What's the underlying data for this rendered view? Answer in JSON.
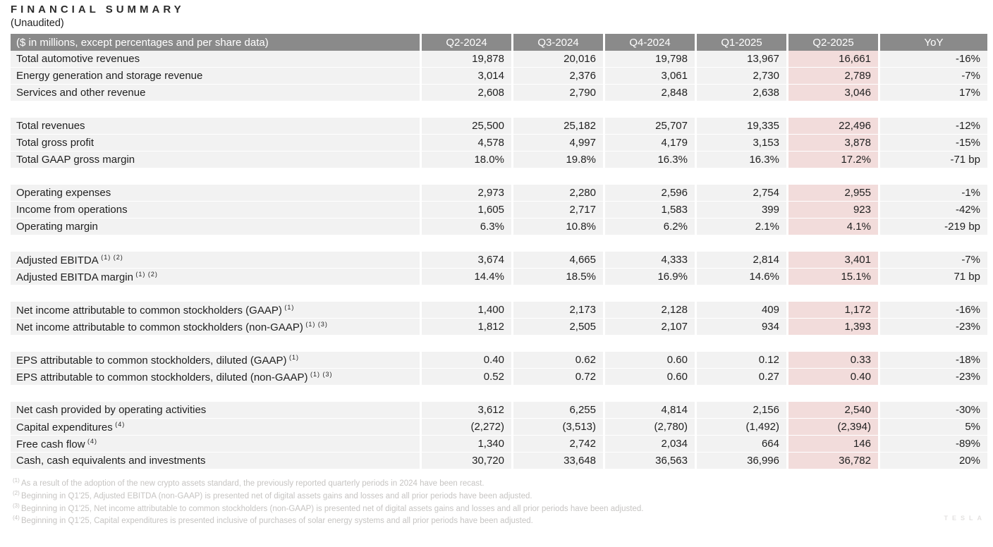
{
  "title": "FINANCIAL SUMMARY",
  "subtitle": "(Unaudited)",
  "colors": {
    "header_bg": "#8a8a8a",
    "row_bg": "#f2f2f2",
    "highlight_column_bg": "#f2dcdb",
    "footnote_text": "#c6c4c2",
    "watermark_text": "#e4e2e1"
  },
  "table": {
    "header_label": "($ in millions, except percentages and per share data)",
    "columns": [
      "Q2-2024",
      "Q3-2024",
      "Q4-2024",
      "Q1-2025",
      "Q2-2025",
      "YoY"
    ],
    "highlight_column": "Q2-2025",
    "groups": [
      {
        "rows": [
          {
            "label": "Total automotive revenues",
            "sup": "",
            "values": [
              "19,878",
              "20,016",
              "19,798",
              "13,967",
              "16,661",
              "-16%"
            ]
          },
          {
            "label": "Energy generation and storage revenue",
            "sup": "",
            "values": [
              "3,014",
              "2,376",
              "3,061",
              "2,730",
              "2,789",
              "-7%"
            ]
          },
          {
            "label": "Services and other revenue",
            "sup": "",
            "values": [
              "2,608",
              "2,790",
              "2,848",
              "2,638",
              "3,046",
              "17%"
            ]
          }
        ]
      },
      {
        "rows": [
          {
            "label": "Total revenues",
            "sup": "",
            "values": [
              "25,500",
              "25,182",
              "25,707",
              "19,335",
              "22,496",
              "-12%"
            ]
          },
          {
            "label": "Total gross profit",
            "sup": "",
            "values": [
              "4,578",
              "4,997",
              "4,179",
              "3,153",
              "3,878",
              "-15%"
            ]
          },
          {
            "label": "Total GAAP gross margin",
            "sup": "",
            "values": [
              "18.0%",
              "19.8%",
              "16.3%",
              "16.3%",
              "17.2%",
              "-71 bp"
            ]
          }
        ]
      },
      {
        "rows": [
          {
            "label": "Operating expenses",
            "sup": "",
            "values": [
              "2,973",
              "2,280",
              "2,596",
              "2,754",
              "2,955",
              "-1%"
            ]
          },
          {
            "label": "Income from operations",
            "sup": "",
            "values": [
              "1,605",
              "2,717",
              "1,583",
              "399",
              "923",
              "-42%"
            ]
          },
          {
            "label": "Operating margin",
            "sup": "",
            "values": [
              "6.3%",
              "10.8%",
              "6.2%",
              "2.1%",
              "4.1%",
              "-219 bp"
            ]
          }
        ]
      },
      {
        "rows": [
          {
            "label": "Adjusted EBITDA",
            "sup": "(1) (2)",
            "values": [
              "3,674",
              "4,665",
              "4,333",
              "2,814",
              "3,401",
              "-7%"
            ]
          },
          {
            "label": "Adjusted EBITDA margin",
            "sup": "(1) (2)",
            "values": [
              "14.4%",
              "18.5%",
              "16.9%",
              "14.6%",
              "15.1%",
              "71 bp"
            ]
          }
        ]
      },
      {
        "rows": [
          {
            "label": "Net income attributable to common stockholders (GAAP)",
            "sup": "(1)",
            "values": [
              "1,400",
              "2,173",
              "2,128",
              "409",
              "1,172",
              "-16%"
            ]
          },
          {
            "label": "Net income attributable to common stockholders (non-GAAP)",
            "sup": "(1) (3)",
            "values": [
              "1,812",
              "2,505",
              "2,107",
              "934",
              "1,393",
              "-23%"
            ]
          }
        ]
      },
      {
        "rows": [
          {
            "label": "EPS attributable to common stockholders, diluted (GAAP)",
            "sup": "(1)",
            "values": [
              "0.40",
              "0.62",
              "0.60",
              "0.12",
              "0.33",
              "-18%"
            ]
          },
          {
            "label": "EPS attributable to common stockholders, diluted (non-GAAP)",
            "sup": "(1) (3)",
            "values": [
              "0.52",
              "0.72",
              "0.60",
              "0.27",
              "0.40",
              "-23%"
            ]
          }
        ]
      },
      {
        "rows": [
          {
            "label": "Net cash provided by operating activities",
            "sup": "",
            "values": [
              "3,612",
              "6,255",
              "4,814",
              "2,156",
              "2,540",
              "-30%"
            ]
          },
          {
            "label": "Capital expenditures",
            "sup": "(4)",
            "values": [
              "(2,272)",
              "(3,513)",
              "(2,780)",
              "(1,492)",
              "(2,394)",
              "5%"
            ]
          },
          {
            "label": "Free cash flow",
            "sup": "(4)",
            "values": [
              "1,340",
              "2,742",
              "2,034",
              "664",
              "146",
              "-89%"
            ]
          },
          {
            "label": "Cash, cash equivalents and investments",
            "sup": "",
            "values": [
              "30,720",
              "33,648",
              "36,563",
              "36,996",
              "36,782",
              "20%"
            ]
          }
        ]
      }
    ]
  },
  "footnotes": [
    {
      "sup": "(1)",
      "text": "As a result of the adoption of the new crypto assets standard, the previously reported quarterly periods in 2024 have been recast."
    },
    {
      "sup": "(2)",
      "text": "Beginning in Q1'25, Adjusted EBITDA (non-GAAP) is presented net of digital assets gains and losses and all prior periods have been adjusted."
    },
    {
      "sup": "(3)",
      "text": "Beginning in Q1'25, Net income attributable to common stockholders (non-GAAP) is presented net of digital assets gains and losses and all prior periods have been adjusted."
    },
    {
      "sup": "(4)",
      "text": "Beginning in Q1'25, Capital expenditures is presented inclusive of purchases of solar energy systems and all prior periods have been adjusted."
    }
  ],
  "watermark": "TESLA"
}
